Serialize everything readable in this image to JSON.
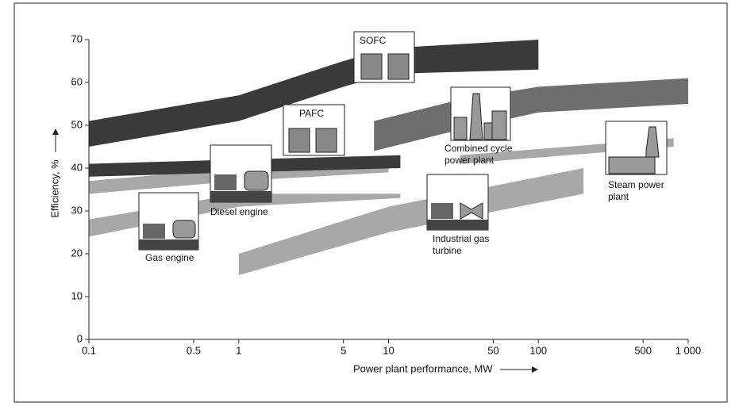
{
  "chart_data": {
    "type": "band",
    "x_label": "Power plant performance, MW",
    "y_label": "Efficiency, %",
    "xscale": "log",
    "xlim": [
      0.1,
      1000
    ],
    "xticks": [
      0.1,
      0.5,
      1,
      5,
      10,
      50,
      100,
      500,
      {
        "value": 1000,
        "label": "1 000"
      }
    ],
    "ylim": [
      0,
      70
    ],
    "yticks": [
      0,
      10,
      20,
      30,
      40,
      50,
      60,
      70
    ],
    "series": [
      {
        "name": "Gas engine",
        "color": "#a8a8a8",
        "x": [
          0.1,
          1,
          12
        ],
        "low": [
          24,
          31,
          33
        ],
        "high": [
          28,
          34,
          34
        ]
      },
      {
        "name": "Diesel engine",
        "color": "#a8a8a8",
        "x": [
          0.1,
          1,
          10
        ],
        "low": [
          34,
          37,
          39
        ],
        "high": [
          37,
          40,
          42
        ]
      },
      {
        "name": "Industrial gas turbine",
        "color": "#a8a8a8",
        "x": [
          1,
          10,
          200
        ],
        "low": [
          15,
          25,
          34
        ],
        "high": [
          20,
          31,
          40
        ]
      },
      {
        "name": "Steam power plant",
        "color": "#a8a8a8",
        "x": [
          30,
          800
        ],
        "low": [
          41,
          45
        ],
        "high": [
          43,
          47
        ]
      },
      {
        "name": "Combined cycle power plant",
        "color": "#6e6e6e",
        "x": [
          8,
          30,
          100,
          1000
        ],
        "low": [
          44,
          49,
          53,
          55
        ],
        "high": [
          51,
          56,
          59,
          61
        ]
      },
      {
        "name": "PAFC",
        "color": "#3a3a3a",
        "x": [
          0.1,
          1,
          12
        ],
        "low": [
          38,
          39,
          40
        ],
        "high": [
          41,
          42,
          43
        ]
      },
      {
        "name": "SOFC",
        "color": "#3a3a3a",
        "x": [
          0.1,
          1,
          5,
          10,
          100
        ],
        "low": [
          45,
          51,
          59,
          62,
          63
        ],
        "high": [
          51,
          57,
          65,
          68,
          70
        ]
      }
    ]
  }
}
